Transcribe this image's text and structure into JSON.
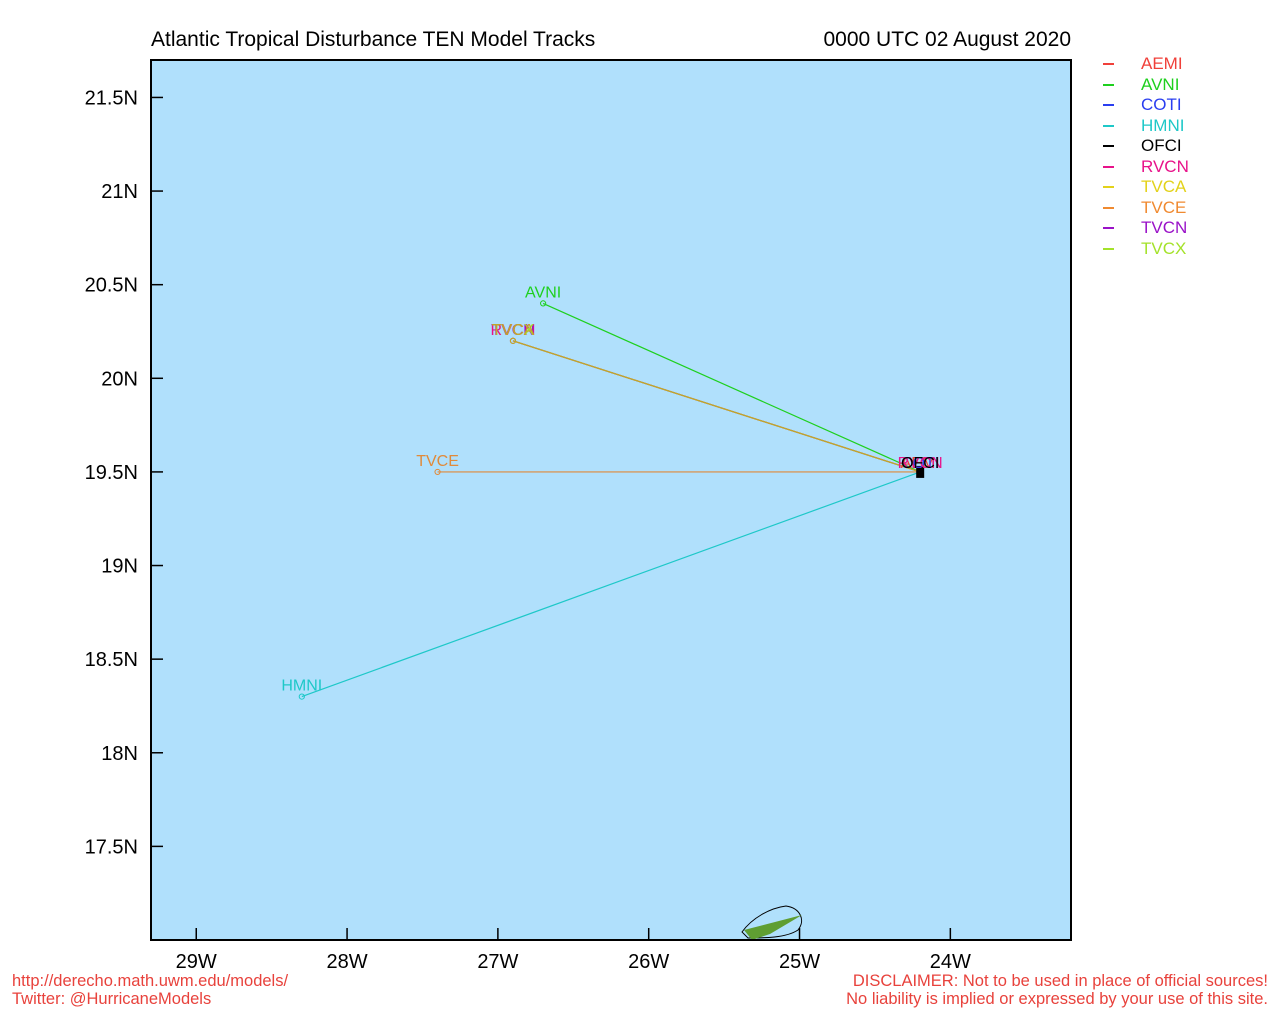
{
  "header": {
    "title": "Atlantic Tropical Disturbance TEN Model Tracks",
    "timestamp": "0000 UTC 02 August 2020"
  },
  "footer": {
    "url": "http://derecho.math.uwm.edu/models/",
    "twitter": "Twitter: @HurricaneModels",
    "disclaimer": "DISCLAIMER: Not to be used in place of official sources!",
    "liability": "No liability is implied or expressed by your use of this site."
  },
  "legend": [
    {
      "name": "AEMI",
      "color": "#f0403a"
    },
    {
      "name": "AVNI",
      "color": "#1ed01e"
    },
    {
      "name": "COTI",
      "color": "#2a3ef0"
    },
    {
      "name": "HMNI",
      "color": "#1ec8c8"
    },
    {
      "name": "OFCI",
      "color": "#000000"
    },
    {
      "name": "RVCN",
      "color": "#e8128a"
    },
    {
      "name": "TVCA",
      "color": "#e3d21a"
    },
    {
      "name": "TVCE",
      "color": "#f08a30"
    },
    {
      "name": "TVCN",
      "color": "#9a12c8"
    },
    {
      "name": "TVCX",
      "color": "#a4e22a"
    }
  ],
  "chart_data": {
    "type": "map-tracks",
    "xlim": [
      -29.3,
      -23.2
    ],
    "ylim": [
      17.0,
      21.7
    ],
    "x_ticks": [
      {
        "value": -29,
        "label": "29W"
      },
      {
        "value": -28,
        "label": "28W"
      },
      {
        "value": -27,
        "label": "27W"
      },
      {
        "value": -26,
        "label": "26W"
      },
      {
        "value": -25,
        "label": "25W"
      },
      {
        "value": -24,
        "label": "24W"
      }
    ],
    "y_ticks": [
      {
        "value": 17.5,
        "label": "17.5N"
      },
      {
        "value": 18,
        "label": "18N"
      },
      {
        "value": 18.5,
        "label": "18.5N"
      },
      {
        "value": 19,
        "label": "19N"
      },
      {
        "value": 19.5,
        "label": "19.5N"
      },
      {
        "value": 20,
        "label": "20N"
      },
      {
        "value": 20.5,
        "label": "20.5N"
      },
      {
        "value": 21,
        "label": "21N"
      },
      {
        "value": 21.5,
        "label": "21.5N"
      }
    ],
    "ocean_color": "#b0e0fc",
    "land_color": "#5f9e32",
    "storm_position": {
      "lon": -24.2,
      "lat": 19.5
    },
    "tracks": [
      {
        "name": "AVNI",
        "color": "#1ed01e",
        "points": [
          [
            -24.2,
            19.5
          ],
          [
            -26.7,
            20.4
          ]
        ]
      },
      {
        "name": "TVCN",
        "color": "#9a12c8",
        "points": [
          [
            -24.2,
            19.5
          ],
          [
            -26.9,
            20.2
          ]
        ]
      },
      {
        "name": "RVCN",
        "color": "#e8128a",
        "points": [
          [
            -24.2,
            19.5
          ],
          [
            -26.9,
            20.2
          ]
        ]
      },
      {
        "name": "TVCX",
        "color": "#a4e22a",
        "points": [
          [
            -24.2,
            19.5
          ],
          [
            -26.9,
            20.2
          ]
        ]
      },
      {
        "name": "TVCA",
        "color": "#c2a52a",
        "points": [
          [
            -24.2,
            19.5
          ],
          [
            -26.9,
            20.2
          ]
        ]
      },
      {
        "name": "TVCE",
        "color": "#e08a3a",
        "points": [
          [
            -24.2,
            19.5
          ],
          [
            -27.4,
            19.5
          ]
        ]
      },
      {
        "name": "HMNI",
        "color": "#1ec8c8",
        "points": [
          [
            -24.2,
            19.5
          ],
          [
            -28.3,
            18.3
          ]
        ]
      }
    ],
    "end_labels": [
      {
        "text": "AVNI",
        "color": "#1ed01e",
        "lon": -26.7,
        "lat": 20.4
      },
      {
        "text": "RVCN",
        "color": "#e8128a",
        "lon": -26.9,
        "lat": 20.2
      },
      {
        "text": "TVCN",
        "color": "#9a12c8",
        "lon": -26.9,
        "lat": 20.2
      },
      {
        "text": "TVCX",
        "color": "#a4e22a",
        "lon": -26.9,
        "lat": 20.2
      },
      {
        "text": "TVCA",
        "color": "#c2a52a",
        "lon": -26.9,
        "lat": 20.2
      },
      {
        "text": "TVCE",
        "color": "#e08a3a",
        "lon": -27.4,
        "lat": 19.5
      },
      {
        "text": "HMNI",
        "color": "#1ec8c8",
        "lon": -28.3,
        "lat": 18.3
      }
    ],
    "start_labels": [
      {
        "text": "AEMI",
        "color": "#f0403a"
      },
      {
        "text": "COTI",
        "color": "#2a3ef0"
      },
      {
        "text": "RVCN",
        "color": "#e8128a"
      },
      {
        "text": "OFCI",
        "color": "#000000"
      }
    ],
    "grid": false,
    "legend_position": "outside-right"
  }
}
